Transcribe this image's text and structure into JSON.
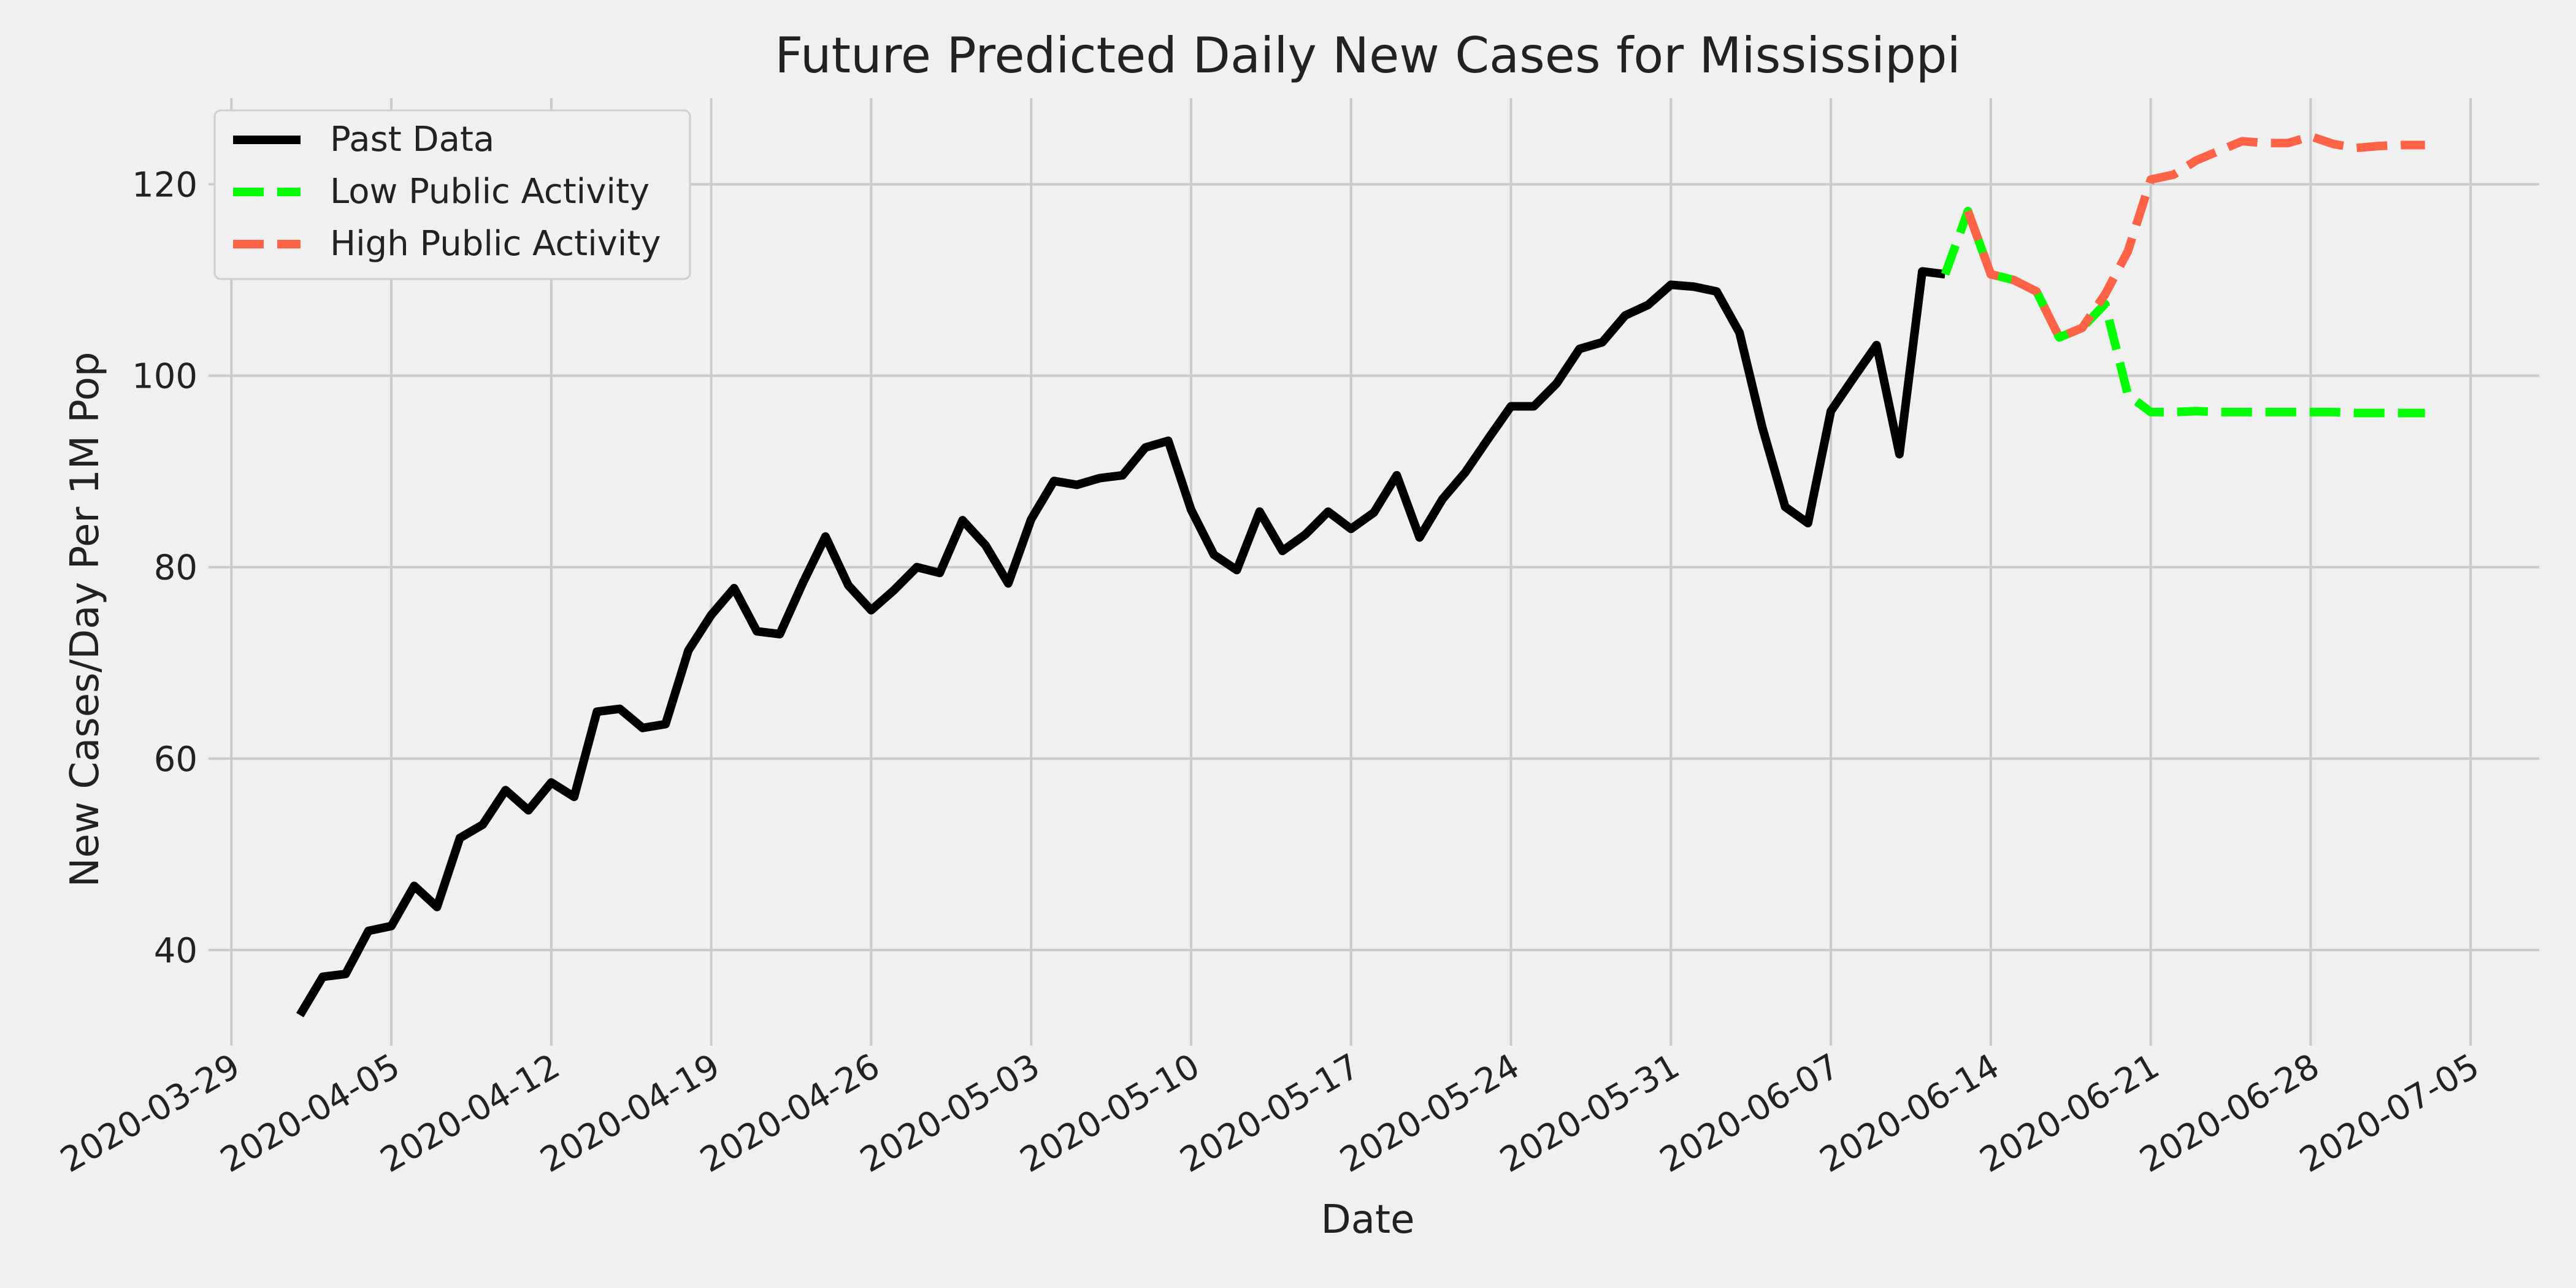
{
  "chart_data": {
    "type": "line",
    "title": "Future Predicted Daily New Cases for Mississippi",
    "xlabel": "Date",
    "ylabel": "New Cases/Day Per 1M Pop",
    "x_axis_type": "date",
    "xlim": [
      "2020-03-28",
      "2020-07-08"
    ],
    "ylim": [
      30,
      129
    ],
    "x_ticks": [
      "2020-03-29",
      "2020-04-05",
      "2020-04-12",
      "2020-04-19",
      "2020-04-26",
      "2020-05-03",
      "2020-05-10",
      "2020-05-17",
      "2020-05-24",
      "2020-05-31",
      "2020-06-07",
      "2020-06-14",
      "2020-06-21",
      "2020-06-28",
      "2020-07-05"
    ],
    "y_ticks": [
      40,
      60,
      80,
      100,
      120
    ],
    "grid": true,
    "legend_position": "top-left",
    "series": [
      {
        "name": "Past Data",
        "color": "#000000",
        "style": "solid",
        "x": [
          "2020-04-01",
          "2020-04-02",
          "2020-04-03",
          "2020-04-04",
          "2020-04-05",
          "2020-04-06",
          "2020-04-07",
          "2020-04-08",
          "2020-04-09",
          "2020-04-10",
          "2020-04-11",
          "2020-04-12",
          "2020-04-13",
          "2020-04-14",
          "2020-04-15",
          "2020-04-16",
          "2020-04-17",
          "2020-04-18",
          "2020-04-19",
          "2020-04-20",
          "2020-04-21",
          "2020-04-22",
          "2020-04-23",
          "2020-04-24",
          "2020-04-25",
          "2020-04-26",
          "2020-04-27",
          "2020-04-28",
          "2020-04-29",
          "2020-04-30",
          "2020-05-01",
          "2020-05-02",
          "2020-05-03",
          "2020-05-04",
          "2020-05-05",
          "2020-05-06",
          "2020-05-07",
          "2020-05-08",
          "2020-05-09",
          "2020-05-10",
          "2020-05-11",
          "2020-05-12",
          "2020-05-13",
          "2020-05-14",
          "2020-05-15",
          "2020-05-16",
          "2020-05-17",
          "2020-05-18",
          "2020-05-19",
          "2020-05-20",
          "2020-05-21",
          "2020-05-22",
          "2020-05-23",
          "2020-05-24",
          "2020-05-25",
          "2020-05-26",
          "2020-05-27",
          "2020-05-28",
          "2020-05-29",
          "2020-05-30",
          "2020-05-31",
          "2020-06-01",
          "2020-06-02",
          "2020-06-03",
          "2020-06-04",
          "2020-06-05",
          "2020-06-06",
          "2020-06-07",
          "2020-06-08",
          "2020-06-09",
          "2020-06-10",
          "2020-06-11",
          "2020-06-12"
        ],
        "values": [
          33.2,
          37.2,
          37.5,
          42.0,
          42.5,
          46.7,
          44.5,
          51.7,
          53.1,
          56.7,
          54.6,
          57.5,
          56.0,
          64.9,
          65.2,
          63.2,
          63.6,
          71.3,
          75.0,
          77.8,
          73.3,
          73.0,
          78.3,
          83.2,
          78.1,
          75.5,
          77.6,
          80.0,
          79.4,
          84.9,
          82.3,
          78.3,
          85.0,
          89.0,
          88.6,
          89.3,
          89.6,
          92.5,
          93.2,
          86.0,
          81.3,
          79.7,
          85.8,
          81.7,
          83.4,
          85.8,
          84.0,
          85.7,
          89.6,
          83.1,
          87.1,
          89.9,
          93.4,
          96.8,
          96.8,
          99.2,
          102.8,
          103.5,
          106.3,
          107.4,
          109.5,
          109.3,
          108.8,
          104.5,
          94.6,
          86.3,
          84.6,
          96.3,
          99.8,
          103.2,
          91.8,
          110.9,
          110.6
        ]
      },
      {
        "name": "Low Public Activity",
        "color": "#00ff00",
        "style": "dashed",
        "x": [
          "2020-06-12",
          "2020-06-13",
          "2020-06-14",
          "2020-06-15",
          "2020-06-16",
          "2020-06-17",
          "2020-06-18",
          "2020-06-19",
          "2020-06-20",
          "2020-06-21",
          "2020-06-22",
          "2020-06-23",
          "2020-06-24",
          "2020-06-25",
          "2020-06-26",
          "2020-06-27",
          "2020-06-28",
          "2020-06-29",
          "2020-06-30",
          "2020-07-01",
          "2020-07-02",
          "2020-07-03"
        ],
        "values": [
          110.6,
          117.2,
          110.6,
          110.0,
          108.8,
          104.0,
          105.0,
          107.5,
          98.0,
          96.2,
          96.2,
          96.3,
          96.2,
          96.2,
          96.2,
          96.2,
          96.2,
          96.2,
          96.1,
          96.1,
          96.1,
          96.1
        ]
      },
      {
        "name": "High Public Activity",
        "color": "#ff6347",
        "style": "dashed",
        "x": [
          "2020-06-13",
          "2020-06-14",
          "2020-06-15",
          "2020-06-16",
          "2020-06-17",
          "2020-06-18",
          "2020-06-19",
          "2020-06-20",
          "2020-06-21",
          "2020-06-22",
          "2020-06-23",
          "2020-06-24",
          "2020-06-25",
          "2020-06-26",
          "2020-06-27",
          "2020-06-28",
          "2020-06-29",
          "2020-06-30",
          "2020-07-01",
          "2020-07-02",
          "2020-07-03"
        ],
        "values": [
          117.2,
          110.6,
          110.0,
          108.8,
          104.0,
          105.0,
          108.5,
          113.0,
          120.5,
          121.0,
          122.5,
          123.5,
          124.5,
          124.3,
          124.3,
          125.0,
          124.2,
          123.8,
          124.0,
          124.1,
          124.1
        ]
      }
    ]
  }
}
